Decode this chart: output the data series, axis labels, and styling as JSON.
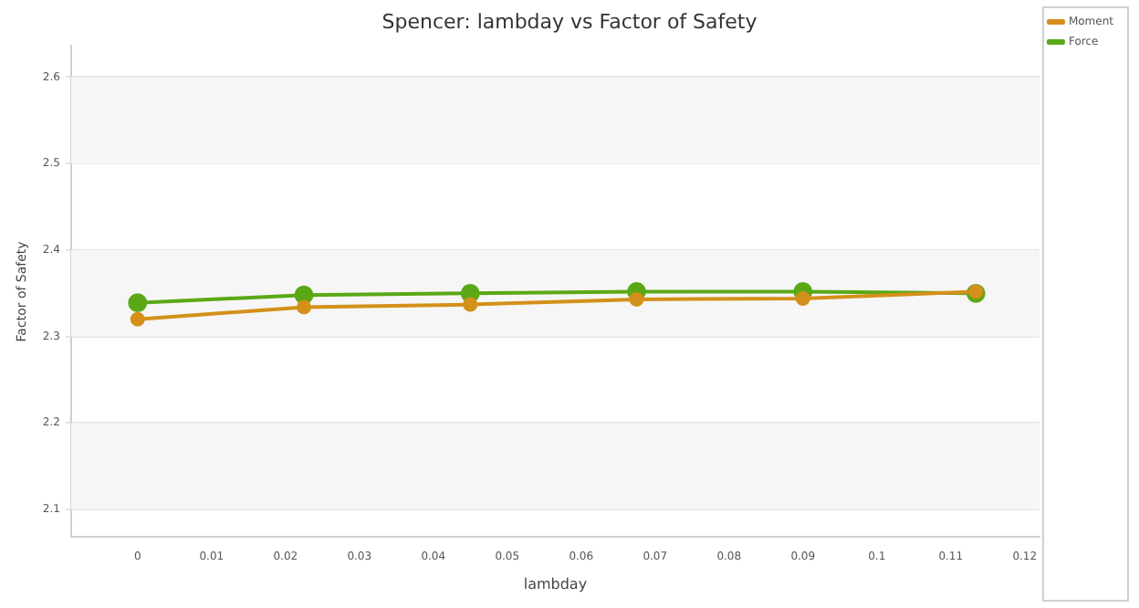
{
  "chart_data": {
    "type": "line",
    "title": "Spencer: lambday vs Factor of Safety",
    "xlabel": "lambday",
    "ylabel": "Factor of Safety",
    "x": [
      0,
      0.0225,
      0.045,
      0.0675,
      0.09,
      0.1134
    ],
    "series": [
      {
        "name": "Moment",
        "color": "#d4901a",
        "values": [
          2.32,
          2.334,
          2.337,
          2.343,
          2.344,
          2.352
        ]
      },
      {
        "name": "Force",
        "color": "#5aa816",
        "values": [
          2.339,
          2.348,
          2.35,
          2.352,
          2.352,
          2.35
        ]
      }
    ],
    "xlim": [
      -0.009,
      0.122
    ],
    "xticks": [
      0,
      0.01,
      0.02,
      0.03,
      0.04,
      0.05,
      0.06,
      0.07,
      0.08,
      0.09,
      0.1,
      0.11,
      0.12
    ],
    "ylim": [
      2.068,
      2.636
    ],
    "yticks": [
      2.1,
      2.2,
      2.3,
      2.4,
      2.5,
      2.6
    ],
    "grid": "y",
    "legend": "top right",
    "marker": "circle",
    "line_style": "solid"
  }
}
